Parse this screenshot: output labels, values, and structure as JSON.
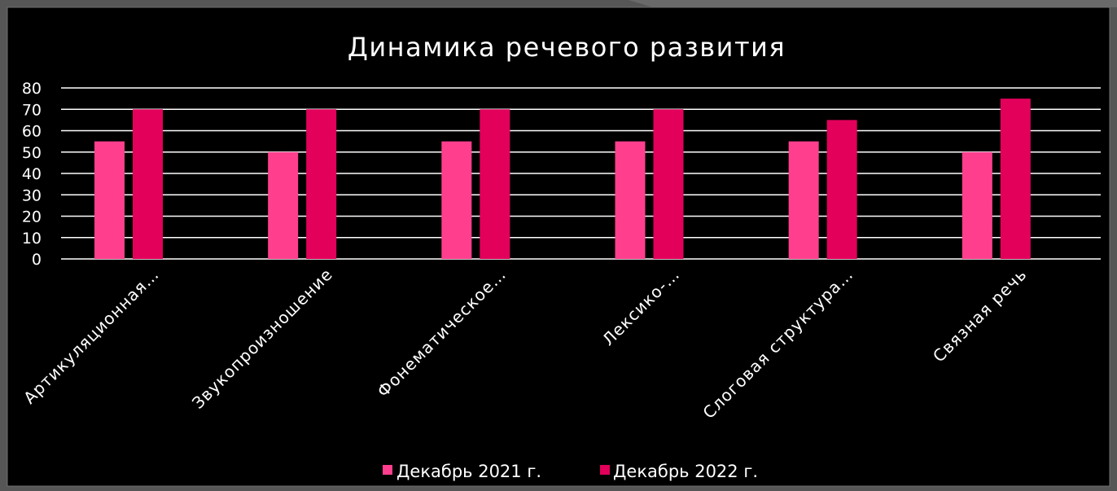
{
  "chart_data": {
    "type": "bar",
    "title": "Динамика речевого развития",
    "categories": [
      "Артикуляционная…",
      "Звукопроизношение",
      "Фонематическое…",
      "Лексико-…",
      "Слоговая структура…",
      "Связная речь"
    ],
    "series": [
      {
        "name": "Декабрь 2021 г.",
        "values": [
          55,
          50,
          55,
          55,
          55,
          50
        ],
        "color": "#FF3F8E"
      },
      {
        "name": "Декабрь 2022 г.",
        "values": [
          70,
          70,
          70,
          70,
          65,
          75
        ],
        "color": "#E2005B"
      }
    ],
    "xlabel": "",
    "ylabel": "",
    "ylim": [
      0,
      80
    ],
    "yticks": [
      0,
      10,
      20,
      30,
      40,
      50,
      60,
      70,
      80
    ],
    "grid": true,
    "legend": "bottom"
  },
  "colors": {
    "background": "#000000",
    "frame": "#565656",
    "text": "#FFFFFF",
    "gridline": "#FFFFFF"
  }
}
